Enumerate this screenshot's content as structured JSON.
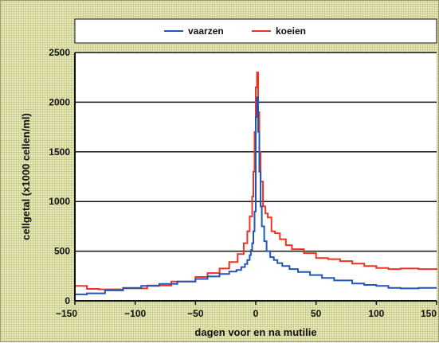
{
  "chart_data": {
    "type": "line",
    "xlabel": "dagen voor en na mutilie",
    "ylabel": "cellgetal (x1000 cellen/ml)",
    "xlim": [
      -150,
      150
    ],
    "ylim": [
      0,
      2500
    ],
    "xticks": [
      -150,
      -100,
      -50,
      0,
      50,
      100,
      150
    ],
    "xtick_labels": [
      "−150",
      "−100",
      "−50",
      "0",
      "50",
      "100",
      "150"
    ],
    "yticks": [
      0,
      500,
      1000,
      1500,
      2000,
      2500
    ],
    "grid": "horizontal",
    "legend_position": "top",
    "series": [
      {
        "name": "vaarzen",
        "color": "#2156b5",
        "x": [
          -150,
          -140,
          -125,
          -110,
          -95,
          -80,
          -65,
          -50,
          -40,
          -30,
          -22,
          -16,
          -12,
          -9,
          -7,
          -5,
          -4,
          -3,
          -2,
          -1,
          0,
          1,
          2,
          3,
          4,
          5,
          7,
          9,
          12,
          15,
          18,
          22,
          28,
          35,
          45,
          55,
          65,
          80,
          90,
          100,
          110,
          120,
          135,
          150
        ],
        "y": [
          65,
          75,
          105,
          130,
          150,
          170,
          195,
          220,
          245,
          270,
          295,
          310,
          340,
          370,
          410,
          460,
          510,
          580,
          700,
          900,
          1850,
          2050,
          1700,
          1300,
          950,
          750,
          600,
          500,
          440,
          410,
          380,
          350,
          320,
          290,
          260,
          230,
          205,
          175,
          160,
          150,
          130,
          125,
          130,
          130
        ]
      },
      {
        "name": "koeien",
        "color": "#ee3322",
        "x": [
          -150,
          -140,
          -130,
          -110,
          -90,
          -70,
          -50,
          -40,
          -30,
          -22,
          -15,
          -10,
          -7,
          -5,
          -3,
          -2,
          -1,
          0,
          1,
          2,
          3,
          4,
          6,
          8,
          10,
          13,
          16,
          20,
          25,
          30,
          40,
          50,
          60,
          70,
          80,
          90,
          100,
          110,
          120,
          135,
          150
        ],
        "y": [
          150,
          120,
          115,
          125,
          155,
          195,
          240,
          280,
          325,
          390,
          470,
          580,
          700,
          850,
          1050,
          1300,
          1700,
          2150,
          2300,
          1900,
          1500,
          1200,
          950,
          880,
          840,
          700,
          680,
          620,
          560,
          520,
          480,
          430,
          420,
          400,
          375,
          350,
          330,
          320,
          325,
          320,
          310
        ]
      }
    ]
  }
}
